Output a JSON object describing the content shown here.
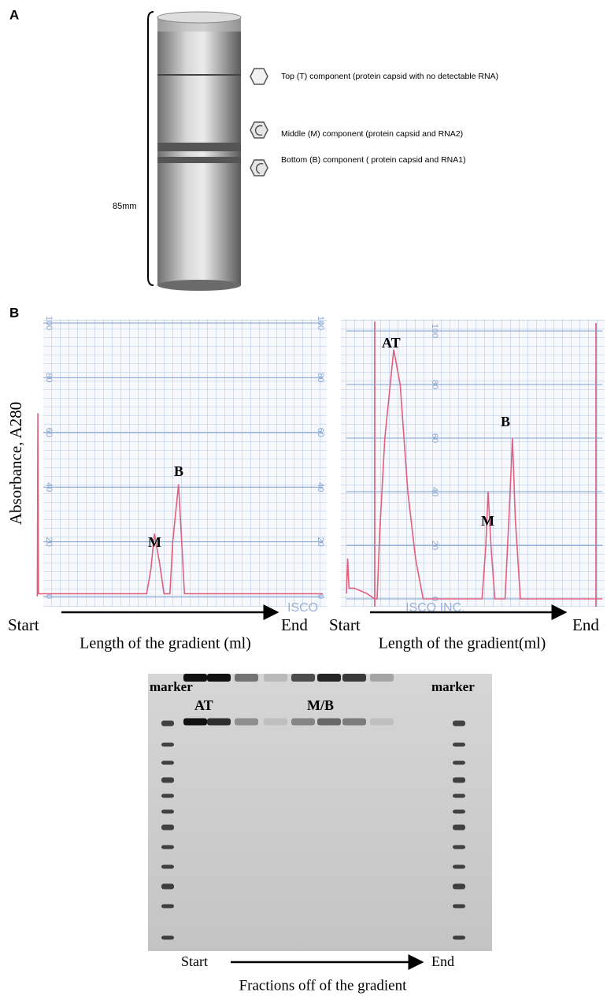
{
  "panel_a": {
    "label": "A",
    "scale_label": "85mm",
    "components": [
      "Top (T) component (protein capsid with no detectable RNA)",
      "Middle (M) component (protein capsid and RNA2)",
      "Bottom (B) component ( protein capsid and RNA1)"
    ]
  },
  "panel_b_label": "B",
  "chart_data": [
    {
      "type": "line",
      "y_label": "Absorbance, A280",
      "x_label": "Length of the gradient (ml)",
      "start_label": "Start",
      "end_label": "End",
      "watermark": "ISCO",
      "xlim": [
        0,
        100
      ],
      "ylim": [
        0,
        100
      ],
      "yticks": [
        0,
        20,
        40,
        60,
        80,
        100
      ],
      "grid": true,
      "x": [
        2,
        2.2,
        2.4,
        39.5,
        41,
        42.2,
        44,
        45.5,
        47.5,
        48.5,
        50.5,
        52.5,
        100
      ],
      "series": [
        {
          "color": "#e0607e",
          "values": [
            0,
            67,
            1,
            1,
            10,
            23,
            12,
            1,
            1,
            20,
            41,
            1,
            1
          ]
        }
      ],
      "annotations": [
        "M",
        "B"
      ]
    },
    {
      "type": "line",
      "x_label": "Length of the gradient(ml)",
      "start_label": "Start",
      "end_label": "End",
      "watermark": "ISCO INC.",
      "xlim": [
        0,
        100
      ],
      "ylim": [
        0,
        100
      ],
      "yticks": [
        0,
        20,
        40,
        60,
        80,
        100
      ],
      "grid": true,
      "x": [
        0,
        0.5,
        1,
        3,
        8,
        11,
        12,
        13,
        15,
        18.5,
        21,
        24,
        27,
        30,
        53,
        54.5,
        55.4,
        56.5,
        58,
        62,
        63.5,
        64.9,
        66,
        68,
        100
      ],
      "series": [
        {
          "color": "#e0607e",
          "values": [
            2,
            15,
            4,
            4,
            2,
            0,
            0,
            25,
            60,
            93,
            80,
            40,
            15,
            0,
            0,
            20,
            40,
            20,
            0,
            0,
            30,
            60,
            30,
            0,
            0
          ]
        }
      ],
      "annotations": [
        "AT",
        "M",
        "B"
      ]
    }
  ],
  "gel": {
    "marker_left": "marker",
    "marker_right": "marker",
    "band_labels": [
      "AT",
      "M/B"
    ],
    "start_label": "Start",
    "end_label": "End",
    "caption": "Fractions off of the gradient"
  }
}
